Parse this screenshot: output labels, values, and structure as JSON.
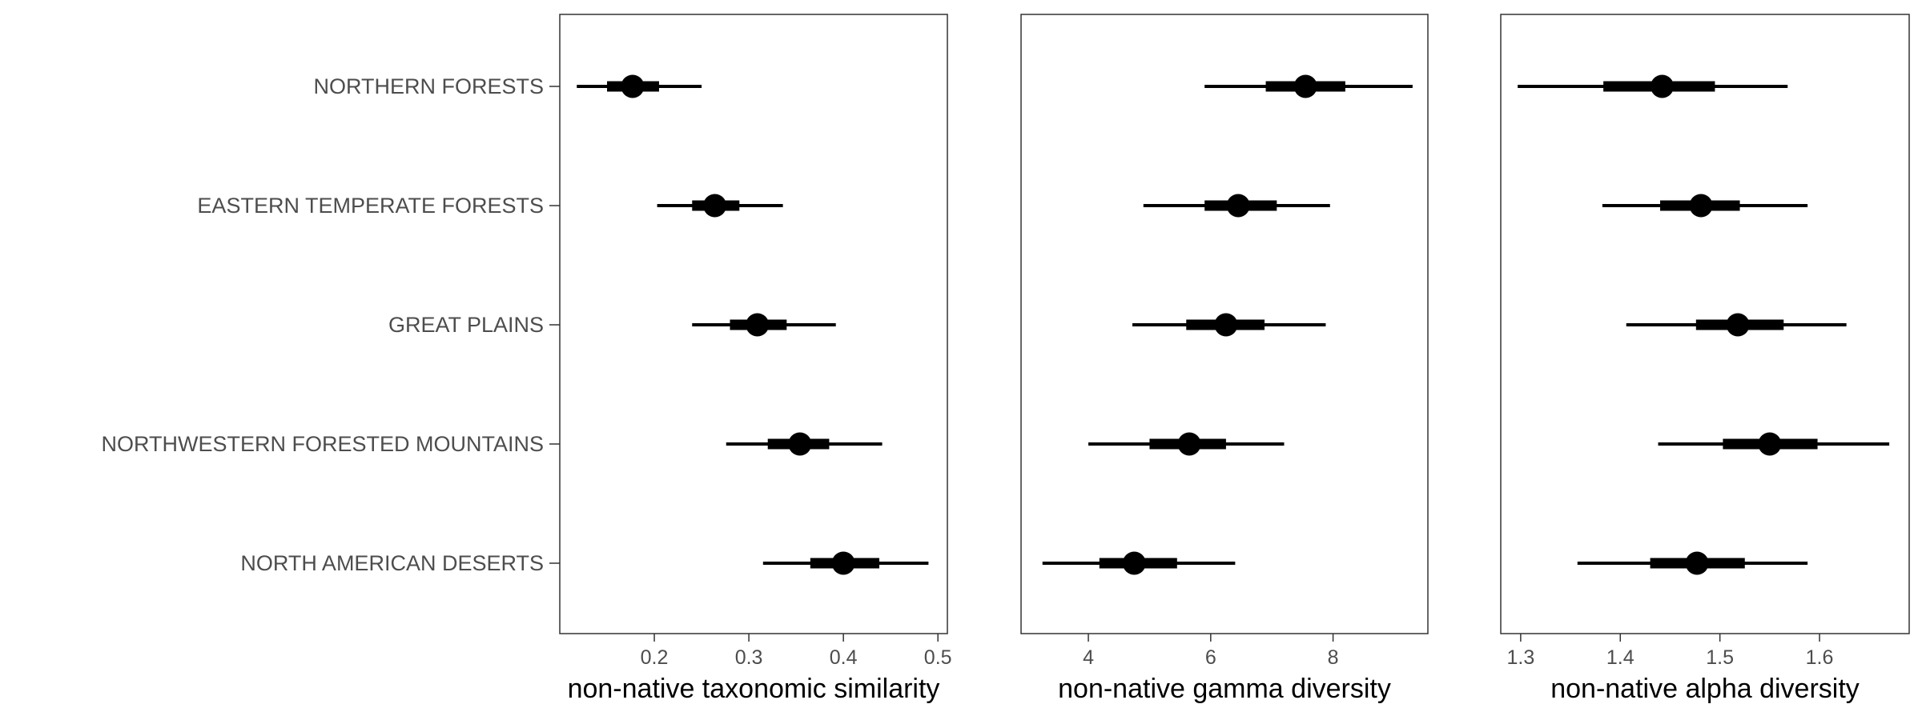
{
  "chart_data": {
    "type": "pointrange",
    "categories": [
      "NORTHERN FORESTS",
      "EASTERN TEMPERATE FORESTS",
      "GREAT PLAINS",
      "NORTHWESTERN FORESTED MOUNTAINS",
      "NORTH AMERICAN DESERTS"
    ],
    "panels": [
      {
        "xlabel": "non-native taxonomic similarity",
        "xlim": [
          0.1,
          0.51
        ],
        "xticks": [
          0.2,
          0.3,
          0.4,
          0.5
        ],
        "xtick_labels": [
          "0.2",
          "0.3",
          "0.4",
          "0.5"
        ],
        "points": [
          {
            "category": "NORTHERN FORESTS",
            "estimate": 0.177,
            "inner": [
              0.15,
              0.205
            ],
            "outer": [
              0.118,
              0.25
            ]
          },
          {
            "category": "EASTERN TEMPERATE FORESTS",
            "estimate": 0.264,
            "inner": [
              0.24,
              0.29
            ],
            "outer": [
              0.203,
              0.336
            ]
          },
          {
            "category": "GREAT PLAINS",
            "estimate": 0.309,
            "inner": [
              0.28,
              0.34
            ],
            "outer": [
              0.24,
              0.392
            ]
          },
          {
            "category": "NORTHWESTERN FORESTED MOUNTAINS",
            "estimate": 0.354,
            "inner": [
              0.32,
              0.385
            ],
            "outer": [
              0.276,
              0.441
            ]
          },
          {
            "category": "NORTH AMERICAN DESERTS",
            "estimate": 0.4,
            "inner": [
              0.365,
              0.438
            ],
            "outer": [
              0.315,
              0.49
            ]
          }
        ]
      },
      {
        "xlabel": "non-native gamma diversity",
        "xlim": [
          2.9,
          9.55
        ],
        "xticks": [
          4,
          6,
          8
        ],
        "xtick_labels": [
          "4",
          "6",
          "8"
        ],
        "points": [
          {
            "category": "NORTHERN FORESTS",
            "estimate": 7.55,
            "inner": [
              6.9,
              8.2
            ],
            "outer": [
              5.9,
              9.3
            ]
          },
          {
            "category": "EASTERN TEMPERATE FORESTS",
            "estimate": 6.45,
            "inner": [
              5.9,
              7.08
            ],
            "outer": [
              4.9,
              7.95
            ]
          },
          {
            "category": "GREAT PLAINS",
            "estimate": 6.25,
            "inner": [
              5.6,
              6.88
            ],
            "outer": [
              4.72,
              7.88
            ]
          },
          {
            "category": "NORTHWESTERN FORESTED MOUNTAINS",
            "estimate": 5.65,
            "inner": [
              5.0,
              6.25
            ],
            "outer": [
              4.0,
              7.2
            ]
          },
          {
            "category": "NORTH AMERICAN DESERTS",
            "estimate": 4.75,
            "inner": [
              4.18,
              5.45
            ],
            "outer": [
              3.25,
              6.4
            ]
          }
        ]
      },
      {
        "xlabel": "non-native alpha diversity",
        "xlim": [
          1.28,
          1.69
        ],
        "xticks": [
          1.3,
          1.4,
          1.5,
          1.6
        ],
        "xtick_labels": [
          "1.3",
          "1.4",
          "1.5",
          "1.6"
        ],
        "points": [
          {
            "category": "NORTHERN FORESTS",
            "estimate": 1.442,
            "inner": [
              1.383,
              1.495
            ],
            "outer": [
              1.297,
              1.568
            ]
          },
          {
            "category": "EASTERN TEMPERATE FORESTS",
            "estimate": 1.481,
            "inner": [
              1.44,
              1.52
            ],
            "outer": [
              1.382,
              1.588
            ]
          },
          {
            "category": "GREAT PLAINS",
            "estimate": 1.518,
            "inner": [
              1.476,
              1.564
            ],
            "outer": [
              1.406,
              1.627
            ]
          },
          {
            "category": "NORTHWESTERN FORESTED MOUNTAINS",
            "estimate": 1.55,
            "inner": [
              1.503,
              1.598
            ],
            "outer": [
              1.438,
              1.67
            ]
          },
          {
            "category": "NORTH AMERICAN DESERTS",
            "estimate": 1.477,
            "inner": [
              1.43,
              1.525
            ],
            "outer": [
              1.357,
              1.588
            ]
          }
        ]
      }
    ],
    "grid": false,
    "legend": "none"
  }
}
